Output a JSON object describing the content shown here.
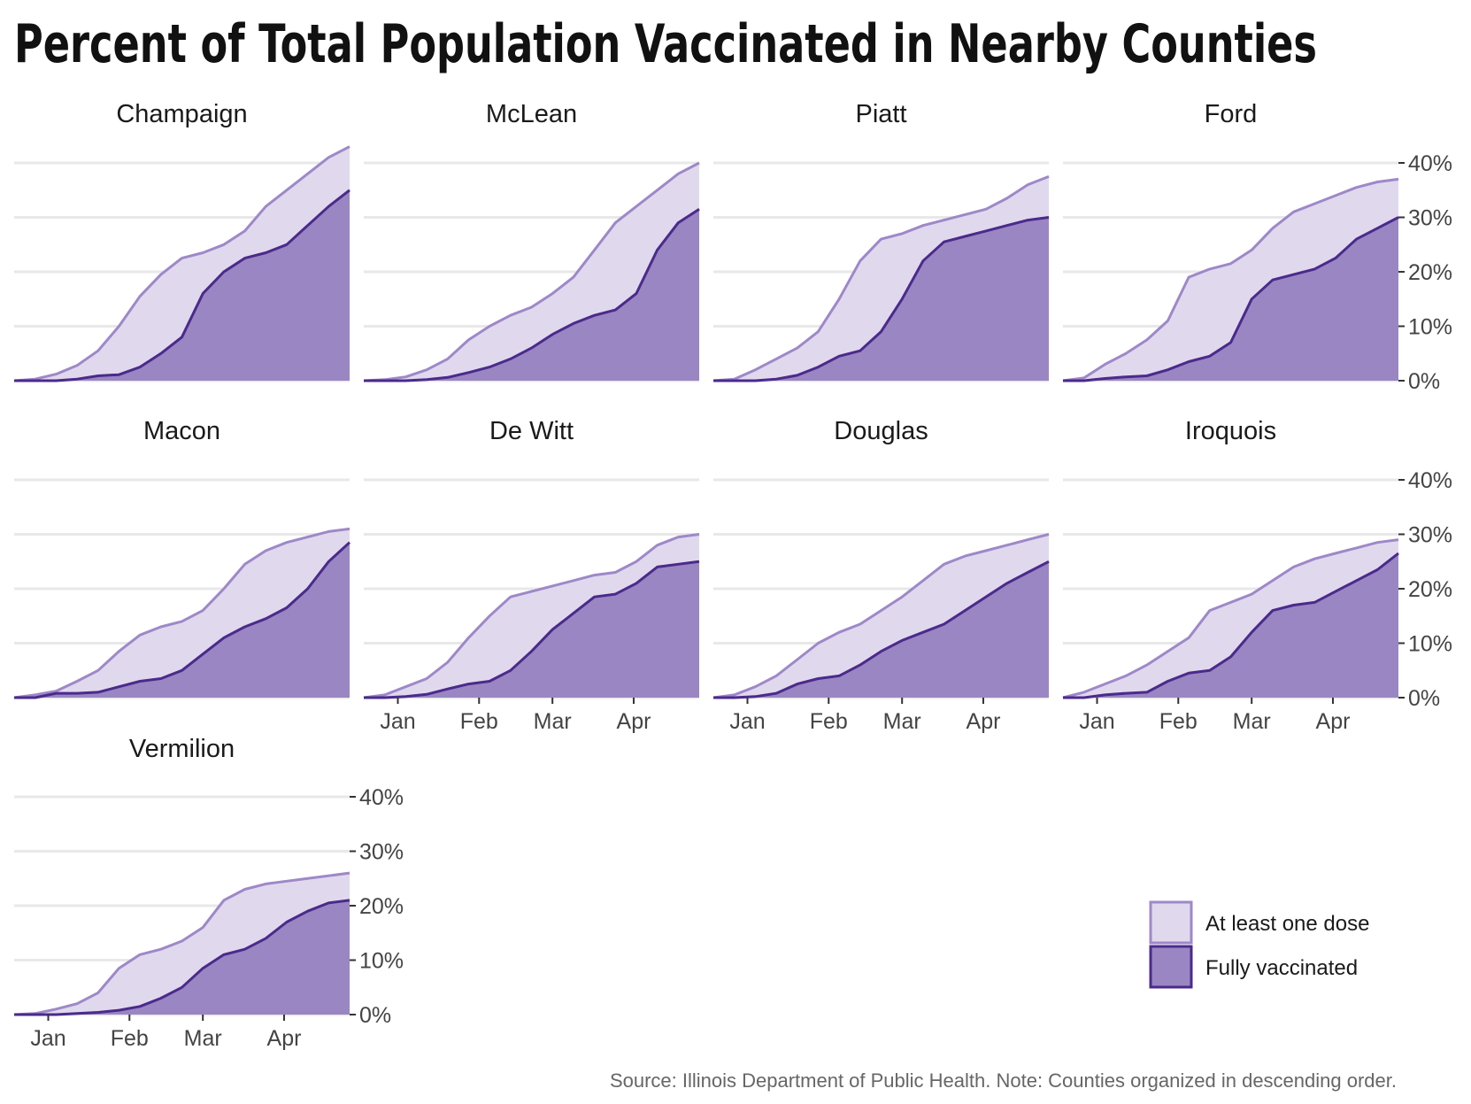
{
  "chart_data": {
    "type": "area",
    "title": "Percent of Total Population Vaccinated in Nearby Counties",
    "source": "Source: Illinois Department of Public Health. Note: Counties organized in descending order.",
    "x_tick_labels": [
      "Jan",
      "Feb",
      "Mar",
      "Apr"
    ],
    "y_tick_labels": [
      "0%",
      "10%",
      "20%",
      "30%",
      "40%"
    ],
    "ylim": [
      0,
      40
    ],
    "grid": true,
    "legend_position": "bottom-right",
    "colors": {
      "one_dose_fill": "#e0d9ee",
      "one_dose_line": "#9e88c8",
      "full_fill": "#9a86c2",
      "full_line": "#4b2a8c",
      "grid": "#e8e8e8"
    },
    "series_labels": [
      "At least one dose",
      "Fully vaccinated"
    ],
    "series_keys": [
      "one_dose",
      "full"
    ],
    "x_days": [
      0,
      8,
      16,
      24,
      32,
      40,
      48,
      56,
      64,
      72,
      80,
      88,
      96,
      104,
      112,
      120,
      128
    ],
    "panels": [
      {
        "name": "Champaign",
        "one_dose": [
          0,
          0.3,
          1.2,
          2.8,
          5.5,
          10,
          15.5,
          19.5,
          22.5,
          23.5,
          25,
          27.5,
          32,
          35,
          38,
          41,
          43
        ],
        "full": [
          0,
          0,
          0,
          0.3,
          0.9,
          1.1,
          2.5,
          5,
          8,
          16,
          20,
          22.5,
          23.5,
          25,
          28.5,
          32,
          35
        ]
      },
      {
        "name": "McLean",
        "one_dose": [
          0,
          0.2,
          0.7,
          2,
          4,
          7.5,
          10,
          12,
          13.5,
          16,
          19,
          24,
          29,
          32,
          35,
          38,
          40
        ],
        "full": [
          0,
          0,
          0,
          0.2,
          0.6,
          1.5,
          2.5,
          4,
          6,
          8.5,
          10.5,
          12,
          13,
          16,
          24,
          29,
          31.5
        ]
      },
      {
        "name": "Piatt",
        "one_dose": [
          0,
          0.3,
          2,
          4,
          6,
          9,
          15,
          22,
          26,
          27,
          28.5,
          29.5,
          30.5,
          31.5,
          33.5,
          36,
          37.5
        ],
        "full": [
          0,
          0,
          0,
          0.3,
          1,
          2.5,
          4.5,
          5.5,
          9,
          15,
          22,
          25.5,
          26.5,
          27.5,
          28.5,
          29.5,
          30
        ]
      },
      {
        "name": "Ford",
        "one_dose": [
          0,
          0.5,
          3,
          5,
          7.5,
          11,
          19,
          20.5,
          21.5,
          24,
          28,
          31,
          32.5,
          34,
          35.5,
          36.5,
          37
        ],
        "full": [
          0,
          0,
          0.4,
          0.7,
          0.9,
          2,
          3.5,
          4.5,
          7,
          15,
          18.5,
          19.5,
          20.5,
          22.5,
          26,
          28,
          30
        ]
      },
      {
        "name": "Macon",
        "one_dose": [
          0,
          0.5,
          1.2,
          3,
          5,
          8.5,
          11.5,
          13,
          14,
          16,
          20,
          24.5,
          27,
          28.5,
          29.5,
          30.5,
          31
        ],
        "full": [
          0,
          0,
          0.8,
          0.8,
          1,
          2,
          3,
          3.5,
          5,
          8,
          11,
          13,
          14.5,
          16.5,
          20,
          25,
          28.5
        ]
      },
      {
        "name": "De Witt",
        "one_dose": [
          0,
          0.5,
          2,
          3.5,
          6.5,
          11,
          15,
          18.5,
          19.5,
          20.5,
          21.5,
          22.5,
          23,
          25,
          28,
          29.5,
          30
        ],
        "full": [
          0,
          0,
          0.2,
          0.6,
          1.6,
          2.5,
          3,
          5,
          8.5,
          12.5,
          15.5,
          18.5,
          19,
          21,
          24,
          24.5,
          25
        ]
      },
      {
        "name": "Douglas",
        "one_dose": [
          0,
          0.5,
          2,
          4,
          7,
          10,
          12,
          13.5,
          16,
          18.5,
          21.5,
          24.5,
          26,
          27,
          28,
          29,
          30
        ],
        "full": [
          0,
          0,
          0.2,
          0.8,
          2.5,
          3.5,
          4,
          6,
          8.5,
          10.5,
          12,
          13.5,
          16,
          18.5,
          21,
          23,
          25
        ]
      },
      {
        "name": "Iroquois",
        "one_dose": [
          0,
          1,
          2.5,
          4,
          6,
          8.5,
          11,
          16,
          17.5,
          19,
          21.5,
          24,
          25.5,
          26.5,
          27.5,
          28.5,
          29
        ],
        "full": [
          0,
          0,
          0.5,
          0.8,
          1,
          3,
          4.5,
          5,
          7.5,
          12,
          16,
          17,
          17.5,
          19.5,
          21.5,
          23.5,
          26.5
        ]
      },
      {
        "name": "Vermilion",
        "one_dose": [
          0,
          0.2,
          1,
          2,
          4,
          8.5,
          11,
          12,
          13.5,
          16,
          21,
          23,
          24,
          24.5,
          25,
          25.5,
          26
        ],
        "full": [
          0,
          0,
          0,
          0.2,
          0.4,
          0.8,
          1.5,
          3,
          5,
          8.5,
          11,
          12,
          14,
          17,
          19,
          20.5,
          21
        ]
      }
    ]
  }
}
